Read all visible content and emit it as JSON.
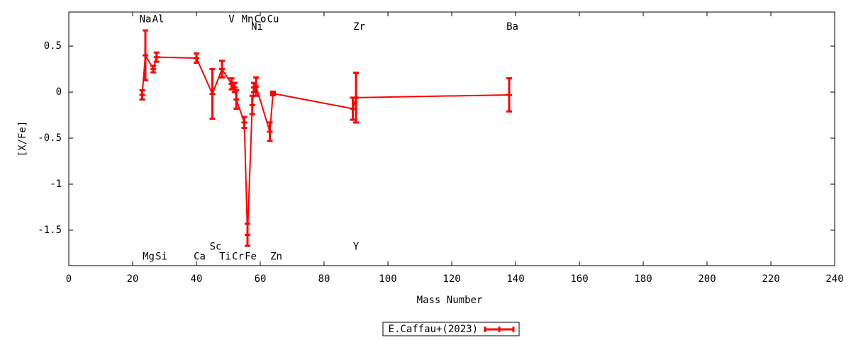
{
  "chart_data": {
    "type": "errorbar-line",
    "xlabel": "Mass Number",
    "ylabel": "[X/Fe]",
    "xlim": [
      0,
      240
    ],
    "ylim": [
      -1.885,
      0.87
    ],
    "xticks": [
      0,
      20,
      40,
      60,
      80,
      100,
      120,
      140,
      160,
      180,
      200,
      220,
      240
    ],
    "yticks": [
      -1.5,
      -1,
      -0.5,
      0,
      0.5
    ],
    "legend": "bottom",
    "series": [
      {
        "name": "E.Caffau+(2023)",
        "color": "#ff0000",
        "x": [
          23,
          24,
          26.5,
          27.5,
          40,
          45,
          48,
          51,
          52,
          52.5,
          55,
          56,
          57.5,
          58,
          58.7,
          63,
          64,
          89,
          90,
          138
        ],
        "values": [
          -0.03,
          0.4,
          0.25,
          0.38,
          0.37,
          -0.02,
          0.25,
          0.09,
          0.05,
          -0.08,
          -0.33,
          -1.55,
          -0.14,
          0.05,
          0.06,
          -0.43,
          -0.015,
          -0.18,
          -0.06,
          -0.03
        ],
        "errors": [
          0.05,
          0.27,
          0.035,
          0.05,
          0.05,
          0.27,
          0.09,
          0.06,
          0.05,
          0.1,
          0.06,
          0.12,
          0.1,
          0.05,
          0.1,
          0.1,
          0.02,
          0.12,
          0.27,
          0.18
        ]
      }
    ],
    "annotations": [
      {
        "text": "Na",
        "x": 24,
        "y": 0.79
      },
      {
        "text": "Al",
        "x": 28,
        "y": 0.79
      },
      {
        "text": "V",
        "x": 51,
        "y": 0.79
      },
      {
        "text": "Mn",
        "x": 56,
        "y": 0.79
      },
      {
        "text": "Co",
        "x": 60,
        "y": 0.79
      },
      {
        "text": "Cu",
        "x": 64,
        "y": 0.79
      },
      {
        "text": "Ni",
        "x": 59,
        "y": 0.71
      },
      {
        "text": "Zr",
        "x": 91,
        "y": 0.71
      },
      {
        "text": "Ba",
        "x": 139,
        "y": 0.71
      },
      {
        "text": "Mg",
        "x": 25,
        "y": -1.79
      },
      {
        "text": "Si",
        "x": 29,
        "y": -1.79
      },
      {
        "text": "Ca",
        "x": 41,
        "y": -1.79
      },
      {
        "text": "Sc",
        "x": 46,
        "y": -1.68
      },
      {
        "text": "Ti",
        "x": 49,
        "y": -1.79
      },
      {
        "text": "Cr",
        "x": 53,
        "y": -1.79
      },
      {
        "text": "Fe",
        "x": 57,
        "y": -1.79
      },
      {
        "text": "Zn",
        "x": 65,
        "y": -1.79
      },
      {
        "text": "Y",
        "x": 90,
        "y": -1.68
      }
    ]
  }
}
